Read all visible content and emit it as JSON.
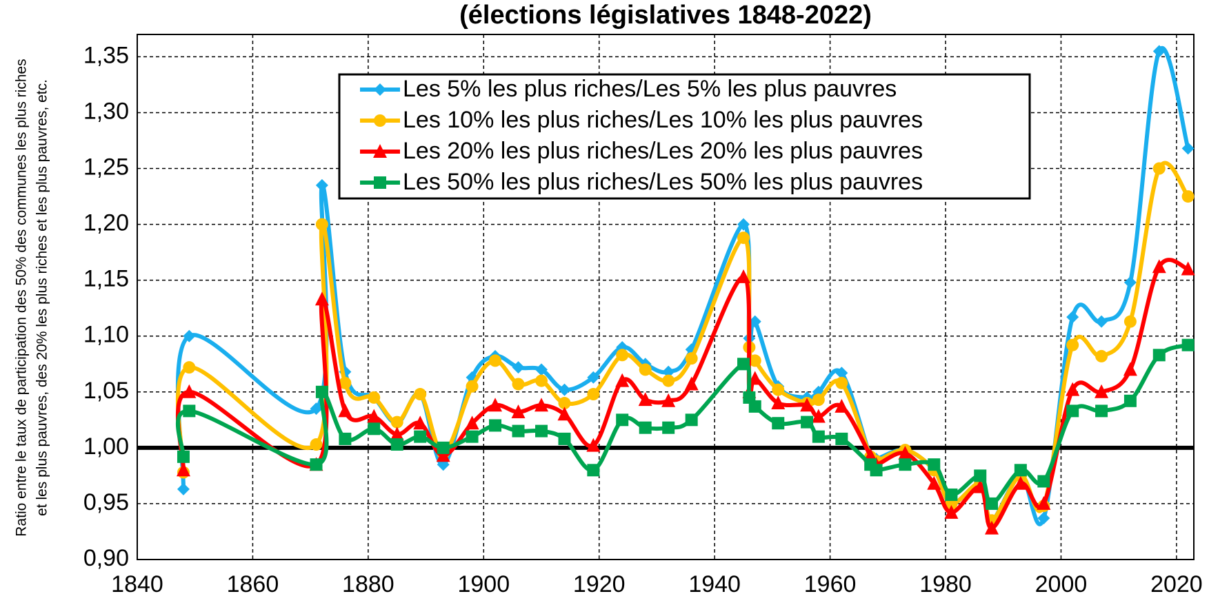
{
  "chart_data": {
    "type": "line",
    "title": "(élections législatives 1848-2022)",
    "y_label": [
      "Ratio entre le taux de participation des 50% des communes les plus riches",
      "et les plus pauvres, des 20% les plus riches et les plus pauvres, etc."
    ],
    "x": [
      1848,
      1849,
      1871,
      1872,
      1876,
      1881,
      1885,
      1889,
      1893,
      1898,
      1902,
      1906,
      1910,
      1914,
      1919,
      1924,
      1928,
      1932,
      1936,
      1945,
      1946,
      1947,
      1951,
      1956,
      1958,
      1962,
      1967,
      1968,
      1973,
      1978,
      1981,
      1986,
      1988,
      1993,
      1997,
      2002,
      2007,
      2012,
      2017,
      2022
    ],
    "series": [
      {
        "name": "Les 5% les plus riches/Les 5% les plus pauvres",
        "color": "#1aaeee",
        "marker": "diamond",
        "values": [
          0.963,
          1.1,
          1.035,
          1.235,
          1.068,
          1.045,
          1.022,
          1.048,
          0.985,
          1.063,
          1.082,
          1.072,
          1.07,
          1.052,
          1.063,
          1.09,
          1.075,
          1.068,
          1.088,
          1.2,
          1.098,
          1.113,
          1.055,
          1.045,
          1.05,
          1.067,
          0.992,
          0.99,
          0.998,
          0.98,
          0.95,
          0.968,
          0.935,
          0.975,
          0.937,
          1.117,
          1.113,
          1.148,
          1.355,
          1.268
        ]
      },
      {
        "name": "Les 10% les plus riches/Les 10% les plus pauvres",
        "color": "#ffc000",
        "marker": "circle",
        "values": [
          0.978,
          1.072,
          1.003,
          1.2,
          1.058,
          1.045,
          1.023,
          1.048,
          0.995,
          1.055,
          1.078,
          1.057,
          1.06,
          1.04,
          1.048,
          1.083,
          1.07,
          1.06,
          1.08,
          1.188,
          1.09,
          1.078,
          1.052,
          1.04,
          1.043,
          1.058,
          0.992,
          0.988,
          0.998,
          0.98,
          0.95,
          0.968,
          0.935,
          0.975,
          0.948,
          1.092,
          1.082,
          1.113,
          1.25,
          1.225
        ]
      },
      {
        "name": "Les 20% les plus riches/Les 20% les plus pauvres",
        "color": "#ff0000",
        "marker": "triangle",
        "values": [
          0.98,
          1.05,
          0.985,
          1.133,
          1.033,
          1.028,
          1.012,
          1.022,
          0.993,
          1.022,
          1.038,
          1.032,
          1.038,
          1.03,
          1.002,
          1.06,
          1.043,
          1.042,
          1.057,
          1.153,
          1.05,
          1.062,
          1.04,
          1.038,
          1.028,
          1.037,
          0.993,
          0.985,
          0.995,
          0.968,
          0.942,
          0.965,
          0.928,
          0.968,
          0.95,
          1.052,
          1.05,
          1.07,
          1.162,
          1.16
        ]
      },
      {
        "name": "Les 50% les plus riches/Les 50% les plus pauvres",
        "color": "#00a550",
        "marker": "square",
        "values": [
          0.992,
          1.033,
          0.985,
          1.05,
          1.008,
          1.017,
          1.003,
          1.01,
          1.0,
          1.01,
          1.02,
          1.015,
          1.015,
          1.008,
          0.98,
          1.025,
          1.018,
          1.018,
          1.025,
          1.075,
          1.045,
          1.037,
          1.022,
          1.023,
          1.01,
          1.008,
          0.985,
          0.98,
          0.985,
          0.985,
          0.958,
          0.975,
          0.95,
          0.98,
          0.97,
          1.033,
          1.033,
          1.042,
          1.083,
          1.092
        ]
      }
    ],
    "xlim": [
      1840,
      2023
    ],
    "ylim": [
      0.9,
      1.37
    ],
    "xticks": [
      1840,
      1860,
      1880,
      1900,
      1920,
      1940,
      1960,
      1980,
      2000,
      2020
    ],
    "yticks": [
      {
        "value": 0.9,
        "label": "0,90"
      },
      {
        "value": 0.95,
        "label": "0,95"
      },
      {
        "value": 1.0,
        "label": "1,00"
      },
      {
        "value": 1.05,
        "label": "1,05"
      },
      {
        "value": 1.1,
        "label": "1,10"
      },
      {
        "value": 1.15,
        "label": "1,15"
      },
      {
        "value": 1.2,
        "label": "1,20"
      },
      {
        "value": 1.25,
        "label": "1,25"
      },
      {
        "value": 1.3,
        "label": "1,30"
      },
      {
        "value": 1.35,
        "label": "1,35"
      }
    ],
    "reference_line": 1.0,
    "grid": true,
    "legend": "top"
  }
}
